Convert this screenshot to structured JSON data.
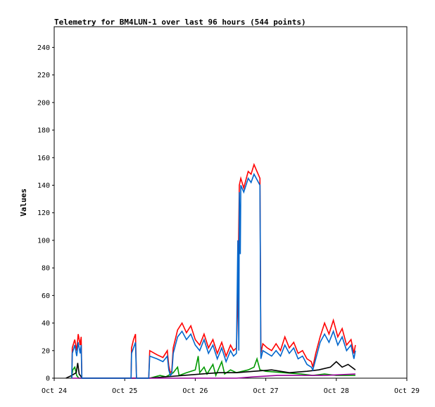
{
  "chart_data": {
    "type": "line",
    "title": "Telemetry for BM4LUN-1 over last 96 hours (544 points)",
    "ylabel": "Values",
    "xlabel": "",
    "ylim": [
      0,
      255
    ],
    "yticks": [
      0,
      20,
      40,
      60,
      80,
      100,
      120,
      140,
      160,
      180,
      200,
      220,
      240
    ],
    "xlim": [
      "2024-10-24T00:00",
      "2024-10-29T00:00"
    ],
    "xticks": [
      {
        "label": "Oct 24",
        "t": "2024-10-24T00:00"
      },
      {
        "label": "Oct 25",
        "t": "2024-10-25T00:00"
      },
      {
        "label": "Oct 26",
        "t": "2024-10-26T00:00"
      },
      {
        "label": "Oct 27",
        "t": "2024-10-27T00:00"
      },
      {
        "label": "Oct 28",
        "t": "2024-10-28T00:00"
      },
      {
        "label": "Oct 29",
        "t": "2024-10-29T00:00"
      }
    ],
    "grid": false,
    "series": [
      {
        "color": "#ff0000",
        "points": [
          [
            "2024-10-24T06:00",
            0
          ],
          [
            "2024-10-24T06:10",
            22
          ],
          [
            "2024-10-24T07:00",
            28
          ],
          [
            "2024-10-24T07:40",
            20
          ],
          [
            "2024-10-24T08:10",
            32
          ],
          [
            "2024-10-24T08:50",
            24
          ],
          [
            "2024-10-24T09:10",
            30
          ],
          [
            "2024-10-24T09:25",
            0
          ],
          [
            "2024-10-25T02:10",
            0
          ],
          [
            "2024-10-25T02:20",
            22
          ],
          [
            "2024-10-25T03:00",
            28
          ],
          [
            "2024-10-25T03:40",
            32
          ],
          [
            "2024-10-25T04:00",
            0
          ],
          [
            "2024-10-25T08:10",
            0
          ],
          [
            "2024-10-25T08:30",
            20
          ],
          [
            "2024-10-25T11:00",
            17
          ],
          [
            "2024-10-25T13:00",
            15
          ],
          [
            "2024-10-25T14:30",
            20
          ],
          [
            "2024-10-25T15:00",
            9
          ],
          [
            "2024-10-25T15:30",
            4
          ],
          [
            "2024-10-25T16:00",
            5
          ],
          [
            "2024-10-25T16:30",
            22
          ],
          [
            "2024-10-25T18:00",
            35
          ],
          [
            "2024-10-25T19:30",
            40
          ],
          [
            "2024-10-25T21:00",
            33
          ],
          [
            "2024-10-25T22:30",
            38
          ],
          [
            "2024-10-26T00:00",
            28
          ],
          [
            "2024-10-26T01:30",
            24
          ],
          [
            "2024-10-26T03:00",
            32
          ],
          [
            "2024-10-26T04:30",
            22
          ],
          [
            "2024-10-26T06:00",
            28
          ],
          [
            "2024-10-26T07:30",
            18
          ],
          [
            "2024-10-26T09:00",
            26
          ],
          [
            "2024-10-26T10:30",
            16
          ],
          [
            "2024-10-26T12:00",
            24
          ],
          [
            "2024-10-26T13:00",
            20
          ],
          [
            "2024-10-26T14:00",
            22
          ],
          [
            "2024-10-26T14:30",
            57
          ],
          [
            "2024-10-26T15:00",
            140
          ],
          [
            "2024-10-26T15:30",
            145
          ],
          [
            "2024-10-26T16:30",
            138
          ],
          [
            "2024-10-26T18:00",
            150
          ],
          [
            "2024-10-26T19:00",
            148
          ],
          [
            "2024-10-26T20:00",
            155
          ],
          [
            "2024-10-26T21:00",
            150
          ],
          [
            "2024-10-26T22:00",
            145
          ],
          [
            "2024-10-26T22:10",
            88
          ],
          [
            "2024-10-26T22:20",
            18
          ],
          [
            "2024-10-26T23:00",
            25
          ],
          [
            "2024-10-27T00:30",
            22
          ],
          [
            "2024-10-27T02:00",
            20
          ],
          [
            "2024-10-27T03:30",
            25
          ],
          [
            "2024-10-27T05:00",
            20
          ],
          [
            "2024-10-27T06:30",
            30
          ],
          [
            "2024-10-27T08:00",
            22
          ],
          [
            "2024-10-27T09:30",
            26
          ],
          [
            "2024-10-27T11:00",
            18
          ],
          [
            "2024-10-27T12:30",
            20
          ],
          [
            "2024-10-27T14:00",
            14
          ],
          [
            "2024-10-27T15:30",
            12
          ],
          [
            "2024-10-27T16:00",
            8
          ],
          [
            "2024-10-27T17:00",
            18
          ],
          [
            "2024-10-27T18:30",
            30
          ],
          [
            "2024-10-27T20:00",
            40
          ],
          [
            "2024-10-27T21:30",
            32
          ],
          [
            "2024-10-27T23:00",
            42
          ],
          [
            "2024-10-28T00:30",
            30
          ],
          [
            "2024-10-28T02:00",
            36
          ],
          [
            "2024-10-28T03:30",
            24
          ],
          [
            "2024-10-28T05:00",
            28
          ],
          [
            "2024-10-28T06:00",
            18
          ],
          [
            "2024-10-28T06:30",
            24
          ]
        ]
      },
      {
        "color": "#0066cc",
        "points": [
          [
            "2024-10-24T06:00",
            0
          ],
          [
            "2024-10-24T06:10",
            18
          ],
          [
            "2024-10-24T07:00",
            24
          ],
          [
            "2024-10-24T07:40",
            16
          ],
          [
            "2024-10-24T08:10",
            26
          ],
          [
            "2024-10-24T08:50",
            18
          ],
          [
            "2024-10-24T09:10",
            24
          ],
          [
            "2024-10-24T09:25",
            0
          ],
          [
            "2024-10-25T02:10",
            0
          ],
          [
            "2024-10-25T02:20",
            18
          ],
          [
            "2024-10-25T03:00",
            22
          ],
          [
            "2024-10-25T03:40",
            26
          ],
          [
            "2024-10-25T04:00",
            0
          ],
          [
            "2024-10-25T08:10",
            0
          ],
          [
            "2024-10-25T08:30",
            16
          ],
          [
            "2024-10-25T11:00",
            14
          ],
          [
            "2024-10-25T13:00",
            12
          ],
          [
            "2024-10-25T14:30",
            16
          ],
          [
            "2024-10-25T15:00",
            6
          ],
          [
            "2024-10-25T15:30",
            2
          ],
          [
            "2024-10-25T16:00",
            3
          ],
          [
            "2024-10-25T16:30",
            18
          ],
          [
            "2024-10-25T18:00",
            30
          ],
          [
            "2024-10-25T19:30",
            34
          ],
          [
            "2024-10-25T21:00",
            28
          ],
          [
            "2024-10-25T22:30",
            32
          ],
          [
            "2024-10-26T00:00",
            24
          ],
          [
            "2024-10-26T01:30",
            20
          ],
          [
            "2024-10-26T03:00",
            28
          ],
          [
            "2024-10-26T04:30",
            18
          ],
          [
            "2024-10-26T06:00",
            24
          ],
          [
            "2024-10-26T07:30",
            14
          ],
          [
            "2024-10-26T09:00",
            22
          ],
          [
            "2024-10-26T10:30",
            12
          ],
          [
            "2024-10-26T12:00",
            20
          ],
          [
            "2024-10-26T13:00",
            16
          ],
          [
            "2024-10-26T14:00",
            18
          ],
          [
            "2024-10-26T14:30",
            100
          ],
          [
            "2024-10-26T14:50",
            20
          ],
          [
            "2024-10-26T15:00",
            135
          ],
          [
            "2024-10-26T15:20",
            90
          ],
          [
            "2024-10-26T15:30",
            140
          ],
          [
            "2024-10-26T16:30",
            135
          ],
          [
            "2024-10-26T18:00",
            145
          ],
          [
            "2024-10-26T19:00",
            142
          ],
          [
            "2024-10-26T20:00",
            148
          ],
          [
            "2024-10-26T21:00",
            144
          ],
          [
            "2024-10-26T22:00",
            140
          ],
          [
            "2024-10-26T22:20",
            14
          ],
          [
            "2024-10-26T23:00",
            20
          ],
          [
            "2024-10-27T00:30",
            18
          ],
          [
            "2024-10-27T02:00",
            16
          ],
          [
            "2024-10-27T03:30",
            20
          ],
          [
            "2024-10-27T05:00",
            16
          ],
          [
            "2024-10-27T06:30",
            24
          ],
          [
            "2024-10-27T08:00",
            18
          ],
          [
            "2024-10-27T09:30",
            22
          ],
          [
            "2024-10-27T11:00",
            14
          ],
          [
            "2024-10-27T12:30",
            16
          ],
          [
            "2024-10-27T14:00",
            10
          ],
          [
            "2024-10-27T15:30",
            8
          ],
          [
            "2024-10-27T16:00",
            6
          ],
          [
            "2024-10-27T17:00",
            14
          ],
          [
            "2024-10-27T18:30",
            26
          ],
          [
            "2024-10-27T20:00",
            32
          ],
          [
            "2024-10-27T21:30",
            26
          ],
          [
            "2024-10-27T23:00",
            34
          ],
          [
            "2024-10-28T00:30",
            24
          ],
          [
            "2024-10-28T02:00",
            30
          ],
          [
            "2024-10-28T03:30",
            20
          ],
          [
            "2024-10-28T05:00",
            24
          ],
          [
            "2024-10-28T06:00",
            14
          ],
          [
            "2024-10-28T06:30",
            20
          ]
        ]
      },
      {
        "color": "#009900",
        "points": [
          [
            "2024-10-24T05:50",
            0
          ],
          [
            "2024-10-24T06:20",
            6
          ],
          [
            "2024-10-24T07:00",
            8
          ],
          [
            "2024-10-24T07:40",
            2
          ],
          [
            "2024-10-24T08:20",
            0
          ],
          [
            "2024-10-25T08:30",
            0
          ],
          [
            "2024-10-25T12:00",
            2
          ],
          [
            "2024-10-25T14:00",
            1
          ],
          [
            "2024-10-25T16:30",
            4
          ],
          [
            "2024-10-25T18:00",
            8
          ],
          [
            "2024-10-25T18:30",
            2
          ],
          [
            "2024-10-25T21:00",
            4
          ],
          [
            "2024-10-26T00:00",
            6
          ],
          [
            "2024-10-26T01:00",
            16
          ],
          [
            "2024-10-26T01:30",
            4
          ],
          [
            "2024-10-26T03:00",
            8
          ],
          [
            "2024-10-26T04:00",
            3
          ],
          [
            "2024-10-26T06:00",
            10
          ],
          [
            "2024-10-26T07:00",
            2
          ],
          [
            "2024-10-26T09:00",
            12
          ],
          [
            "2024-10-26T10:00",
            3
          ],
          [
            "2024-10-26T12:00",
            6
          ],
          [
            "2024-10-26T14:00",
            4
          ],
          [
            "2024-10-26T18:00",
            6
          ],
          [
            "2024-10-26T20:00",
            8
          ],
          [
            "2024-10-26T21:00",
            14
          ],
          [
            "2024-10-26T22:00",
            6
          ],
          [
            "2024-10-27T00:00",
            5
          ],
          [
            "2024-10-27T06:00",
            4
          ],
          [
            "2024-10-27T12:00",
            3
          ],
          [
            "2024-10-27T16:00",
            2
          ],
          [
            "2024-10-27T20:00",
            3
          ],
          [
            "2024-10-28T00:00",
            2
          ],
          [
            "2024-10-28T06:30",
            2
          ]
        ]
      },
      {
        "color": "#000000",
        "points": [
          [
            "2024-10-24T04:00",
            0
          ],
          [
            "2024-10-24T06:00",
            2
          ],
          [
            "2024-10-24T07:30",
            4
          ],
          [
            "2024-10-24T08:00",
            11
          ],
          [
            "2024-10-24T08:30",
            3
          ],
          [
            "2024-10-24T09:30",
            0
          ],
          [
            "2024-10-25T08:00",
            0
          ],
          [
            "2024-10-25T14:00",
            1
          ],
          [
            "2024-10-25T20:00",
            2
          ],
          [
            "2024-10-26T02:00",
            3
          ],
          [
            "2024-10-26T08:00",
            4
          ],
          [
            "2024-10-26T14:00",
            4
          ],
          [
            "2024-10-26T20:00",
            5
          ],
          [
            "2024-10-27T02:00",
            6
          ],
          [
            "2024-10-27T08:00",
            4
          ],
          [
            "2024-10-27T14:00",
            5
          ],
          [
            "2024-10-27T18:00",
            6
          ],
          [
            "2024-10-27T22:00",
            8
          ],
          [
            "2024-10-28T00:00",
            12
          ],
          [
            "2024-10-28T02:00",
            8
          ],
          [
            "2024-10-28T04:00",
            10
          ],
          [
            "2024-10-28T06:30",
            6
          ]
        ]
      },
      {
        "color": "#990099",
        "points": [
          [
            "2024-10-24T06:00",
            0
          ],
          [
            "2024-10-26T14:00",
            0
          ],
          [
            "2024-10-26T20:00",
            1
          ],
          [
            "2024-10-27T04:00",
            2
          ],
          [
            "2024-10-27T12:00",
            2
          ],
          [
            "2024-10-27T20:00",
            2
          ],
          [
            "2024-10-28T06:30",
            3
          ]
        ]
      }
    ]
  }
}
